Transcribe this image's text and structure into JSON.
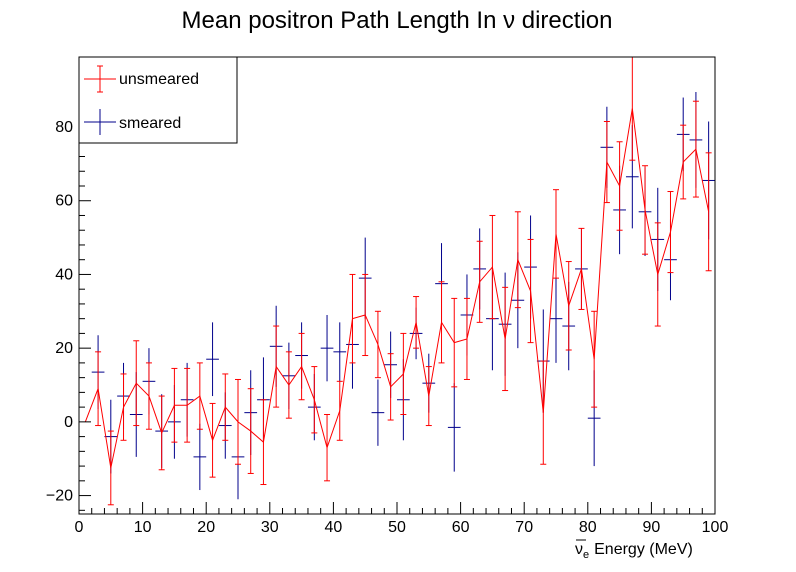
{
  "chart_data": {
    "type": "line",
    "title": "Mean positron Path Length In   ν direction",
    "xlabel": "Energy (MeV)",
    "xlabel_symbol": "ν",
    "xlabel_subscript": "e",
    "xlim": [
      0,
      100
    ],
    "ylim": [
      -25,
      99
    ],
    "xticks": [
      0,
      10,
      20,
      30,
      40,
      50,
      60,
      70,
      80,
      90,
      100
    ],
    "yticks": [
      -20,
      0,
      20,
      40,
      60,
      80
    ],
    "grid": false,
    "legend_position": "top-left",
    "series": [
      {
        "name": "unsmeared",
        "color": "#ff0000",
        "style": "line-with-errorbars",
        "x": [
          1,
          3,
          5,
          7,
          9,
          11,
          13,
          15,
          17,
          19,
          21,
          23,
          25,
          27,
          29,
          31,
          33,
          35,
          37,
          39,
          41,
          43,
          45,
          47,
          49,
          51,
          53,
          55,
          57,
          59,
          61,
          63,
          65,
          67,
          69,
          71,
          73,
          75,
          77,
          79,
          81,
          83,
          85,
          87,
          89,
          91,
          93,
          95,
          97,
          99
        ],
        "y": [
          0,
          9,
          -12.5,
          4,
          10.5,
          7,
          -3,
          4.5,
          4.5,
          7,
          -5,
          4,
          0,
          -2.5,
          -5.5,
          15,
          10,
          15,
          6,
          -7,
          3,
          28,
          29,
          21,
          9.5,
          13,
          27,
          7,
          27,
          21.5,
          22.5,
          38,
          42,
          22.5,
          44,
          35.5,
          2.5,
          51,
          31.5,
          41.5,
          17,
          70.5,
          64,
          85,
          57.5,
          40,
          51.5,
          70.5,
          74,
          57
        ],
        "err": [
          0,
          10,
          10,
          9,
          11.5,
          9,
          10,
          10,
          10,
          9,
          10,
          9,
          11.5,
          11.5,
          11.5,
          11,
          9,
          9,
          9,
          9,
          8,
          12,
          11,
          9,
          9,
          11,
          7,
          8,
          11,
          12,
          11,
          11,
          14,
          14,
          13,
          14,
          14,
          12,
          12,
          11,
          13,
          11,
          12,
          14,
          12,
          14,
          11,
          10,
          13,
          16
        ]
      },
      {
        "name": "smeared",
        "color": "#00008b",
        "style": "errorbars",
        "x": [
          3,
          5,
          7,
          9,
          11,
          13,
          15,
          17,
          19,
          21,
          23,
          25,
          27,
          29,
          31,
          33,
          35,
          37,
          39,
          41,
          43,
          45,
          47,
          49,
          51,
          53,
          55,
          57,
          59,
          61,
          63,
          65,
          67,
          69,
          71,
          73,
          75,
          77,
          79,
          81,
          83,
          85,
          87,
          89,
          91,
          93,
          95,
          97,
          99
        ],
        "y": [
          13.5,
          -4,
          7,
          2,
          11,
          -2.5,
          0,
          6,
          -9.5,
          17,
          -1,
          -9.5,
          2.5,
          6,
          20.5,
          12.5,
          18,
          4,
          20,
          19,
          21,
          39,
          2.5,
          15.5,
          6,
          24,
          10.5,
          37.5,
          -1.5,
          29,
          41.5,
          28,
          26.5,
          33,
          42,
          16.5,
          28,
          26,
          41.5,
          1,
          74.5,
          57.5,
          66.5,
          57,
          49.5,
          44,
          78,
          76.5,
          65.5
        ]
      }
    ]
  }
}
